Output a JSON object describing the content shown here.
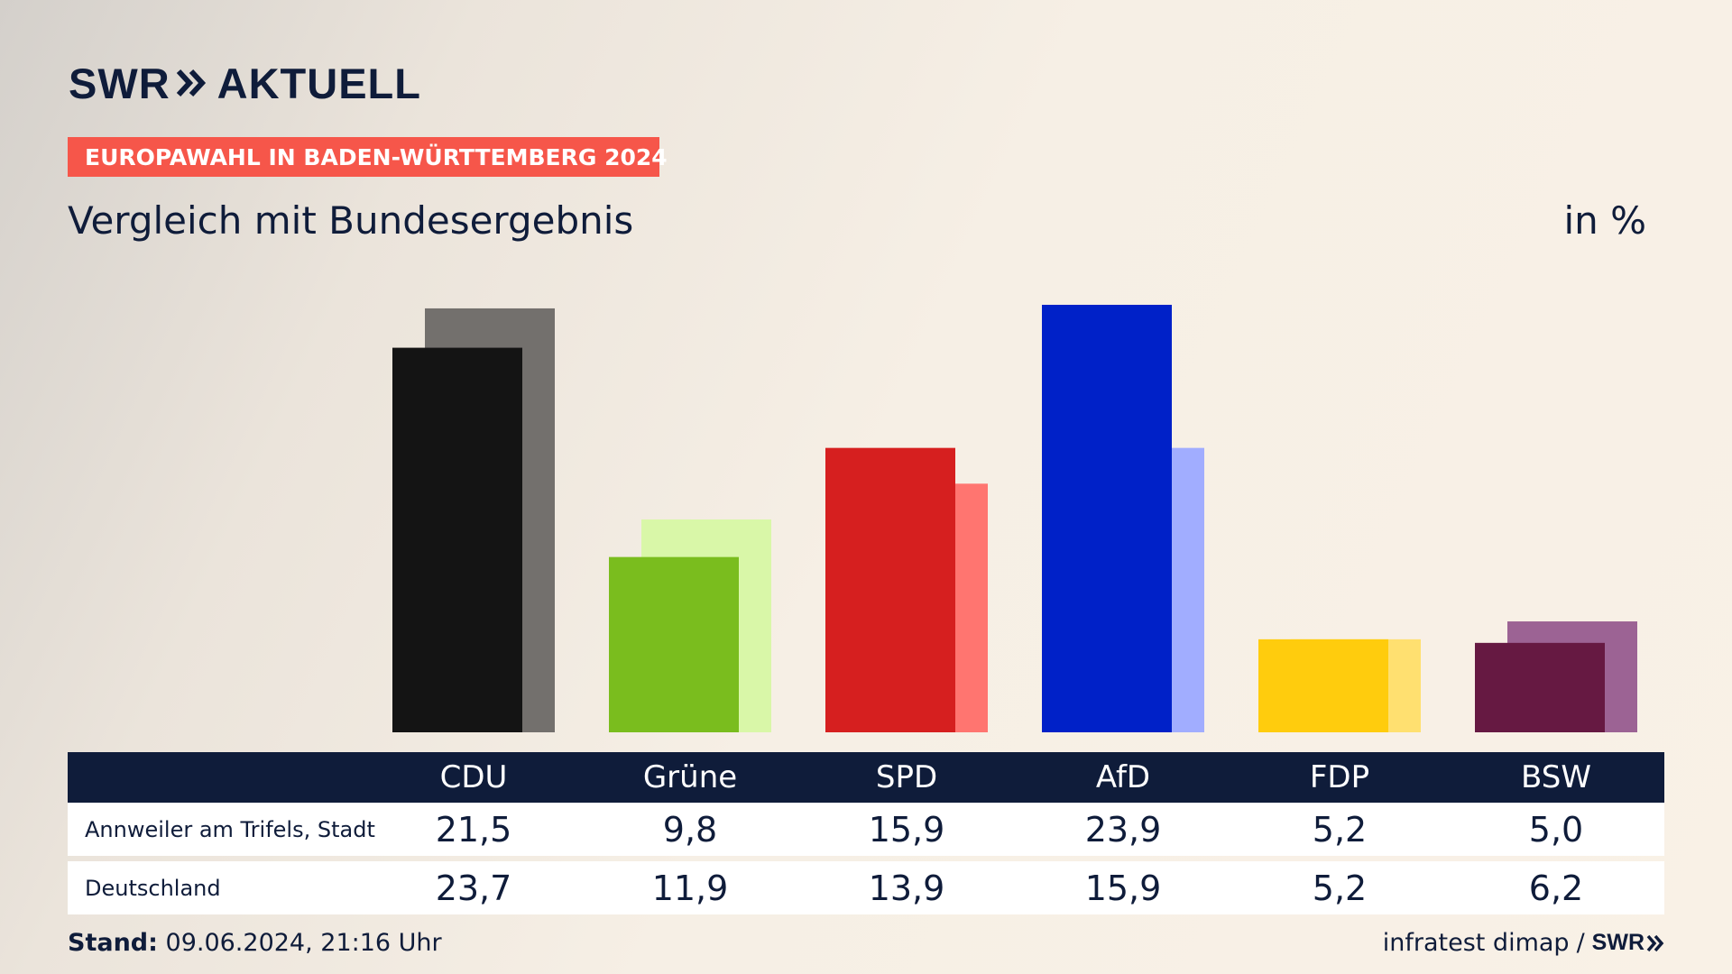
{
  "brand": {
    "name_left": "SWR",
    "name_right": "AKTUELL",
    "icon": "double-chevron-right-icon",
    "color": "#0f1c3a"
  },
  "banner": {
    "text": "EUROPAWAHL IN BADEN-WÜRTTEMBERG 2024",
    "color": "#f6564a"
  },
  "subtitle": "Vergleich mit Bundesergebnis",
  "unit": "in %",
  "chart_data": {
    "type": "bar",
    "categories": [
      "CDU",
      "Grüne",
      "SPD",
      "AfD",
      "FDP",
      "BSW"
    ],
    "series": [
      {
        "name": "Annweiler am Trifels, Stadt",
        "values": [
          21.5,
          9.8,
          15.9,
          23.9,
          5.2,
          5.0
        ],
        "display": [
          "21,5",
          "9,8",
          "15,9",
          "23,9",
          "5,2",
          "5,0"
        ],
        "colors": [
          "#141414",
          "#7abd1e",
          "#d61f1f",
          "#0021c8",
          "#ffcc0d",
          "#661942"
        ]
      },
      {
        "name": "Deutschland",
        "values": [
          23.7,
          11.9,
          13.9,
          15.9,
          5.2,
          6.2
        ],
        "display": [
          "23,7",
          "11,9",
          "13,9",
          "15,9",
          "5,2",
          "6,2"
        ],
        "colors": [
          "#73706d",
          "#d9f7a8",
          "#ff7570",
          "#a1adff",
          "#ffe070",
          "#9c6394"
        ]
      }
    ],
    "ylim": [
      0,
      24
    ],
    "grid": false,
    "legend": "table-below"
  },
  "footer": {
    "stand_label": "Stand:",
    "stand_value": "09.06.2024, 21:16 Uhr",
    "source": "infratest dimap",
    "separator": "/",
    "source_brand": "SWR"
  }
}
